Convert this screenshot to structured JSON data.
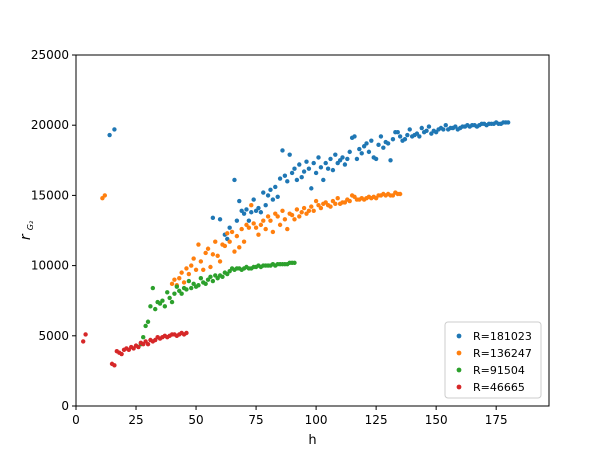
{
  "chart_data": {
    "type": "scatter",
    "title": "",
    "xlabel": "h",
    "ylabel_main": "r",
    "ylabel_sub": "G₂",
    "xlim": [
      0,
      197
    ],
    "ylim": [
      0,
      25000
    ],
    "xticks": [
      0,
      25,
      50,
      75,
      100,
      125,
      150,
      175
    ],
    "yticks": [
      0,
      5000,
      10000,
      15000,
      20000,
      25000
    ],
    "grid": false,
    "legend_position": "lower-right",
    "series": [
      {
        "name": "R=181023",
        "color": "#1f77b4",
        "points": [
          [
            14,
            19300
          ],
          [
            16,
            19700
          ],
          [
            57,
            13400
          ],
          [
            60,
            13300
          ],
          [
            62,
            12200
          ],
          [
            63,
            11900
          ],
          [
            64,
            12700
          ],
          [
            66,
            16100
          ],
          [
            67,
            13200
          ],
          [
            68,
            14600
          ],
          [
            69,
            13900
          ],
          [
            70,
            13700
          ],
          [
            71,
            14000
          ],
          [
            72,
            13200
          ],
          [
            73,
            13800
          ],
          [
            74,
            14700
          ],
          [
            75,
            13900
          ],
          [
            76,
            14100
          ],
          [
            77,
            13800
          ],
          [
            78,
            15200
          ],
          [
            79,
            14300
          ],
          [
            80,
            15000
          ],
          [
            81,
            15400
          ],
          [
            82,
            14700
          ],
          [
            83,
            15600
          ],
          [
            84,
            14900
          ],
          [
            85,
            16200
          ],
          [
            86,
            18200
          ],
          [
            87,
            16400
          ],
          [
            88,
            16000
          ],
          [
            89,
            17900
          ],
          [
            90,
            16600
          ],
          [
            91,
            16900
          ],
          [
            92,
            16100
          ],
          [
            93,
            17200
          ],
          [
            94,
            16300
          ],
          [
            95,
            16700
          ],
          [
            96,
            17400
          ],
          [
            97,
            16900
          ],
          [
            98,
            15500
          ],
          [
            99,
            17300
          ],
          [
            100,
            16600
          ],
          [
            101,
            17700
          ],
          [
            102,
            17000
          ],
          [
            103,
            16100
          ],
          [
            104,
            17300
          ],
          [
            105,
            16900
          ],
          [
            106,
            17600
          ],
          [
            107,
            16800
          ],
          [
            108,
            17900
          ],
          [
            109,
            17300
          ],
          [
            110,
            17500
          ],
          [
            111,
            17700
          ],
          [
            112,
            17200
          ],
          [
            113,
            17600
          ],
          [
            114,
            18100
          ],
          [
            115,
            19100
          ],
          [
            116,
            19200
          ],
          [
            117,
            17600
          ],
          [
            118,
            18300
          ],
          [
            119,
            18000
          ],
          [
            120,
            18500
          ],
          [
            121,
            18700
          ],
          [
            122,
            18100
          ],
          [
            123,
            18900
          ],
          [
            124,
            17700
          ],
          [
            125,
            17600
          ],
          [
            126,
            18600
          ],
          [
            127,
            19200
          ],
          [
            128,
            18400
          ],
          [
            129,
            18800
          ],
          [
            130,
            18700
          ],
          [
            131,
            17500
          ],
          [
            132,
            19000
          ],
          [
            133,
            19500
          ],
          [
            134,
            19500
          ],
          [
            135,
            19200
          ],
          [
            136,
            18900
          ],
          [
            137,
            19000
          ],
          [
            138,
            19300
          ],
          [
            139,
            19700
          ],
          [
            140,
            19200
          ],
          [
            141,
            19300
          ],
          [
            142,
            19400
          ],
          [
            143,
            19200
          ],
          [
            144,
            19800
          ],
          [
            145,
            19500
          ],
          [
            146,
            19600
          ],
          [
            147,
            19900
          ],
          [
            148,
            19400
          ],
          [
            149,
            19600
          ],
          [
            150,
            19500
          ],
          [
            151,
            19700
          ],
          [
            152,
            19800
          ],
          [
            153,
            19700
          ],
          [
            154,
            20000
          ],
          [
            155,
            19700
          ],
          [
            156,
            19800
          ],
          [
            157,
            19800
          ],
          [
            158,
            19900
          ],
          [
            159,
            19700
          ],
          [
            160,
            19800
          ],
          [
            161,
            19900
          ],
          [
            162,
            19900
          ],
          [
            163,
            20000
          ],
          [
            164,
            19900
          ],
          [
            165,
            20000
          ],
          [
            166,
            20000
          ],
          [
            167,
            19900
          ],
          [
            168,
            20000
          ],
          [
            169,
            20100
          ],
          [
            170,
            20100
          ],
          [
            171,
            20000
          ],
          [
            172,
            20100
          ],
          [
            173,
            20100
          ],
          [
            174,
            20100
          ],
          [
            175,
            20200
          ],
          [
            176,
            20100
          ],
          [
            177,
            20100
          ],
          [
            178,
            20200
          ],
          [
            179,
            20200
          ],
          [
            180,
            20200
          ]
        ]
      },
      {
        "name": "R=136247",
        "color": "#ff7f0e",
        "points": [
          [
            11,
            14800
          ],
          [
            12,
            15000
          ],
          [
            40,
            8700
          ],
          [
            41,
            9000
          ],
          [
            42,
            8600
          ],
          [
            43,
            9100
          ],
          [
            44,
            9500
          ],
          [
            45,
            8800
          ],
          [
            46,
            9800
          ],
          [
            47,
            9400
          ],
          [
            48,
            10000
          ],
          [
            49,
            10500
          ],
          [
            50,
            9700
          ],
          [
            51,
            11500
          ],
          [
            52,
            10300
          ],
          [
            53,
            9700
          ],
          [
            54,
            10900
          ],
          [
            55,
            11200
          ],
          [
            56,
            9900
          ],
          [
            57,
            10800
          ],
          [
            58,
            11700
          ],
          [
            59,
            10700
          ],
          [
            60,
            10300
          ],
          [
            61,
            11500
          ],
          [
            62,
            11400
          ],
          [
            63,
            12300
          ],
          [
            64,
            11700
          ],
          [
            65,
            12400
          ],
          [
            66,
            11000
          ],
          [
            67,
            12100
          ],
          [
            68,
            11300
          ],
          [
            69,
            12600
          ],
          [
            70,
            11700
          ],
          [
            71,
            12900
          ],
          [
            72,
            12700
          ],
          [
            73,
            14300
          ],
          [
            74,
            13000
          ],
          [
            75,
            12700
          ],
          [
            76,
            12200
          ],
          [
            77,
            12900
          ],
          [
            78,
            13200
          ],
          [
            79,
            12600
          ],
          [
            80,
            13500
          ],
          [
            81,
            13200
          ],
          [
            82,
            12400
          ],
          [
            83,
            13700
          ],
          [
            84,
            13500
          ],
          [
            85,
            12900
          ],
          [
            86,
            13900
          ],
          [
            87,
            13300
          ],
          [
            88,
            12600
          ],
          [
            89,
            13700
          ],
          [
            90,
            13600
          ],
          [
            91,
            13300
          ],
          [
            92,
            14000
          ],
          [
            93,
            13500
          ],
          [
            94,
            13800
          ],
          [
            95,
            14100
          ],
          [
            96,
            13700
          ],
          [
            97,
            13900
          ],
          [
            98,
            14200
          ],
          [
            99,
            13900
          ],
          [
            100,
            14600
          ],
          [
            101,
            14300
          ],
          [
            102,
            14100
          ],
          [
            103,
            14400
          ],
          [
            104,
            14500
          ],
          [
            105,
            14300
          ],
          [
            106,
            14200
          ],
          [
            107,
            14600
          ],
          [
            108,
            14400
          ],
          [
            109,
            14800
          ],
          [
            110,
            14400
          ],
          [
            111,
            14500
          ],
          [
            112,
            14500
          ],
          [
            113,
            14700
          ],
          [
            114,
            14600
          ],
          [
            115,
            15000
          ],
          [
            116,
            14900
          ],
          [
            117,
            14700
          ],
          [
            118,
            14700
          ],
          [
            119,
            14800
          ],
          [
            120,
            14700
          ],
          [
            121,
            14800
          ],
          [
            122,
            14900
          ],
          [
            123,
            14800
          ],
          [
            124,
            14900
          ],
          [
            125,
            14800
          ],
          [
            126,
            15000
          ],
          [
            127,
            15000
          ],
          [
            128,
            15100
          ],
          [
            129,
            15000
          ],
          [
            130,
            15100
          ],
          [
            131,
            15000
          ],
          [
            132,
            15000
          ],
          [
            133,
            15200
          ],
          [
            134,
            15100
          ],
          [
            135,
            15100
          ]
        ]
      },
      {
        "name": "R=91504",
        "color": "#2ca02c",
        "points": [
          [
            27,
            4400
          ],
          [
            28,
            4900
          ],
          [
            29,
            5700
          ],
          [
            30,
            6000
          ],
          [
            31,
            7100
          ],
          [
            32,
            8400
          ],
          [
            33,
            6900
          ],
          [
            34,
            7400
          ],
          [
            35,
            7300
          ],
          [
            36,
            7500
          ],
          [
            37,
            7100
          ],
          [
            38,
            8100
          ],
          [
            39,
            7700
          ],
          [
            40,
            7400
          ],
          [
            41,
            8000
          ],
          [
            42,
            8500
          ],
          [
            43,
            8200
          ],
          [
            44,
            8000
          ],
          [
            45,
            8400
          ],
          [
            46,
            8300
          ],
          [
            47,
            8900
          ],
          [
            48,
            8400
          ],
          [
            49,
            8700
          ],
          [
            50,
            8500
          ],
          [
            51,
            8600
          ],
          [
            52,
            9100
          ],
          [
            53,
            8800
          ],
          [
            54,
            8700
          ],
          [
            55,
            9000
          ],
          [
            56,
            9200
          ],
          [
            57,
            8900
          ],
          [
            58,
            9300
          ],
          [
            59,
            9100
          ],
          [
            60,
            9300
          ],
          [
            61,
            9200
          ],
          [
            62,
            9500
          ],
          [
            63,
            9400
          ],
          [
            64,
            9600
          ],
          [
            65,
            9800
          ],
          [
            66,
            9700
          ],
          [
            67,
            9800
          ],
          [
            68,
            9800
          ],
          [
            69,
            9700
          ],
          [
            70,
            9800
          ],
          [
            71,
            9900
          ],
          [
            72,
            9800
          ],
          [
            73,
            9800
          ],
          [
            74,
            9900
          ],
          [
            75,
            9900
          ],
          [
            76,
            10000
          ],
          [
            77,
            9900
          ],
          [
            78,
            10000
          ],
          [
            79,
            10000
          ],
          [
            80,
            10000
          ],
          [
            81,
            10000
          ],
          [
            82,
            10100
          ],
          [
            83,
            10000
          ],
          [
            84,
            10100
          ],
          [
            85,
            10100
          ],
          [
            86,
            10100
          ],
          [
            87,
            10100
          ],
          [
            88,
            10100
          ],
          [
            89,
            10200
          ],
          [
            90,
            10200
          ],
          [
            91,
            10200
          ]
        ]
      },
      {
        "name": "R=46665",
        "color": "#d62728",
        "points": [
          [
            3,
            4600
          ],
          [
            4,
            5100
          ],
          [
            15,
            3000
          ],
          [
            16,
            2900
          ],
          [
            17,
            3900
          ],
          [
            18,
            3800
          ],
          [
            19,
            3700
          ],
          [
            20,
            4000
          ],
          [
            21,
            4100
          ],
          [
            22,
            4000
          ],
          [
            23,
            4200
          ],
          [
            24,
            4100
          ],
          [
            25,
            4300
          ],
          [
            26,
            4200
          ],
          [
            27,
            4500
          ],
          [
            28,
            4400
          ],
          [
            29,
            4600
          ],
          [
            30,
            4400
          ],
          [
            31,
            4700
          ],
          [
            32,
            4600
          ],
          [
            33,
            4700
          ],
          [
            34,
            4900
          ],
          [
            35,
            4800
          ],
          [
            36,
            4900
          ],
          [
            37,
            5000
          ],
          [
            38,
            4900
          ],
          [
            39,
            5000
          ],
          [
            40,
            5100
          ],
          [
            41,
            5100
          ],
          [
            42,
            5000
          ],
          [
            43,
            5100
          ],
          [
            44,
            5200
          ],
          [
            45,
            5100
          ],
          [
            46,
            5200
          ]
        ]
      }
    ]
  }
}
